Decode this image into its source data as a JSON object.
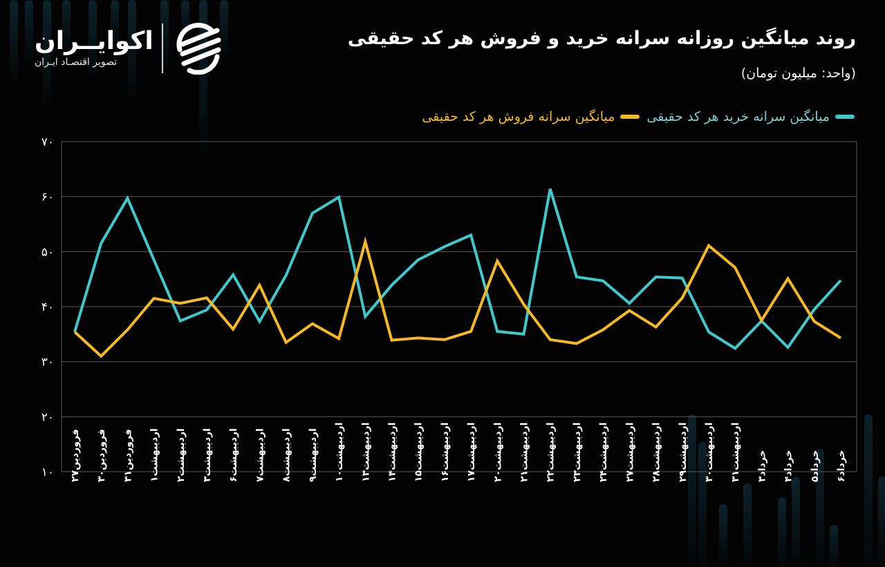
{
  "header": {
    "title": "روند میانگین روزانه سرانه خرید و فروش هر کد حقیقی",
    "subtitle": "(واحد: میلیون تومان)"
  },
  "logo": {
    "name": "اکوایــران",
    "tagline": "تصویر اقتصـاد ایـران",
    "icon": "ecoiran-swirl-logo-icon"
  },
  "colors": {
    "background": "#030303",
    "grid": "#585858",
    "buy": "#3ec9cc",
    "buy_legend_text": "#7fd0d4",
    "sell": "#f6b924",
    "text": "#ffffff"
  },
  "legend": {
    "buy_label": "میانگین سرانه خرید هر کد حقیقی",
    "sell_label": "میانگین سرانه فروش هر کد حقیقی"
  },
  "chart_data": {
    "type": "line",
    "title": "روند میانگین روزانه سرانه خرید و فروش هر کد حقیقی",
    "subtitle": "(واحد: میلیون تومان)",
    "xlabel": "",
    "ylabel": "میلیون تومان",
    "ylim": [
      10,
      70
    ],
    "yticks": [
      10,
      20,
      30,
      40,
      50,
      60,
      70
    ],
    "ytick_labels": [
      "۱۰",
      "۲۰",
      "۳۰",
      "۴۰",
      "۵۰",
      "۶۰",
      "۷۰"
    ],
    "grid": true,
    "legend_position": "top-right",
    "categories": [
      "فروردین۲۷",
      "فروردین۳۰",
      "فروردین۳۱",
      "اردیبهشت۱",
      "اردیبهشت۲",
      "اردیبهشت۳",
      "اردیبهشت۶",
      "اردیبهشت۷",
      "اردیبهشت۸",
      "اردیبهشت۹",
      "اردیبهشت۱۰",
      "اردیبهشت۱۳",
      "اردیبهشت۱۴",
      "اردیبهشت۱۵",
      "اردیبهشت۱۶",
      "اردیبهشت۱۷",
      "اردیبهشت۲۰",
      "اردیبهشت۲۱",
      "اردیبهشت۲۲",
      "اردیبهشت۲۳",
      "اردیبهشت۲۴",
      "اردیبهشت۲۷",
      "اردیبهشت۲۸",
      "اردیبهشت۲۹",
      "اردیبهشت۳۰",
      "اردیبهشت۳۱",
      "خرداد۳",
      "خرداد۴",
      "خرداد۵",
      "خرداد۶"
    ],
    "series": [
      {
        "name": "میانگین سرانه خرید هر کد حقیقی",
        "color": "#3ec9cc",
        "values": [
          35.4,
          51.5,
          59.7,
          48.5,
          37.4,
          39.4,
          45.8,
          37.3,
          45.7,
          57.0,
          59.9,
          38.2,
          43.9,
          48.5,
          50.9,
          53.0,
          35.5,
          35.0,
          61.4,
          45.4,
          44.7,
          40.6,
          45.4,
          45.2,
          35.4,
          32.4,
          37.4,
          32.6,
          39.5,
          44.8
        ]
      },
      {
        "name": "میانگین سرانه فروش هر کد حقیقی",
        "color": "#f6b924",
        "values": [
          35.4,
          31.0,
          35.8,
          41.5,
          40.6,
          41.6,
          35.9,
          43.9,
          33.5,
          36.9,
          34.2,
          51.8,
          33.9,
          34.3,
          34.0,
          35.5,
          48.3,
          40.4,
          34.0,
          33.3,
          35.8,
          39.3,
          36.3,
          41.6,
          51.1,
          47.1,
          37.5,
          45.1,
          37.3,
          34.3
        ]
      }
    ]
  }
}
